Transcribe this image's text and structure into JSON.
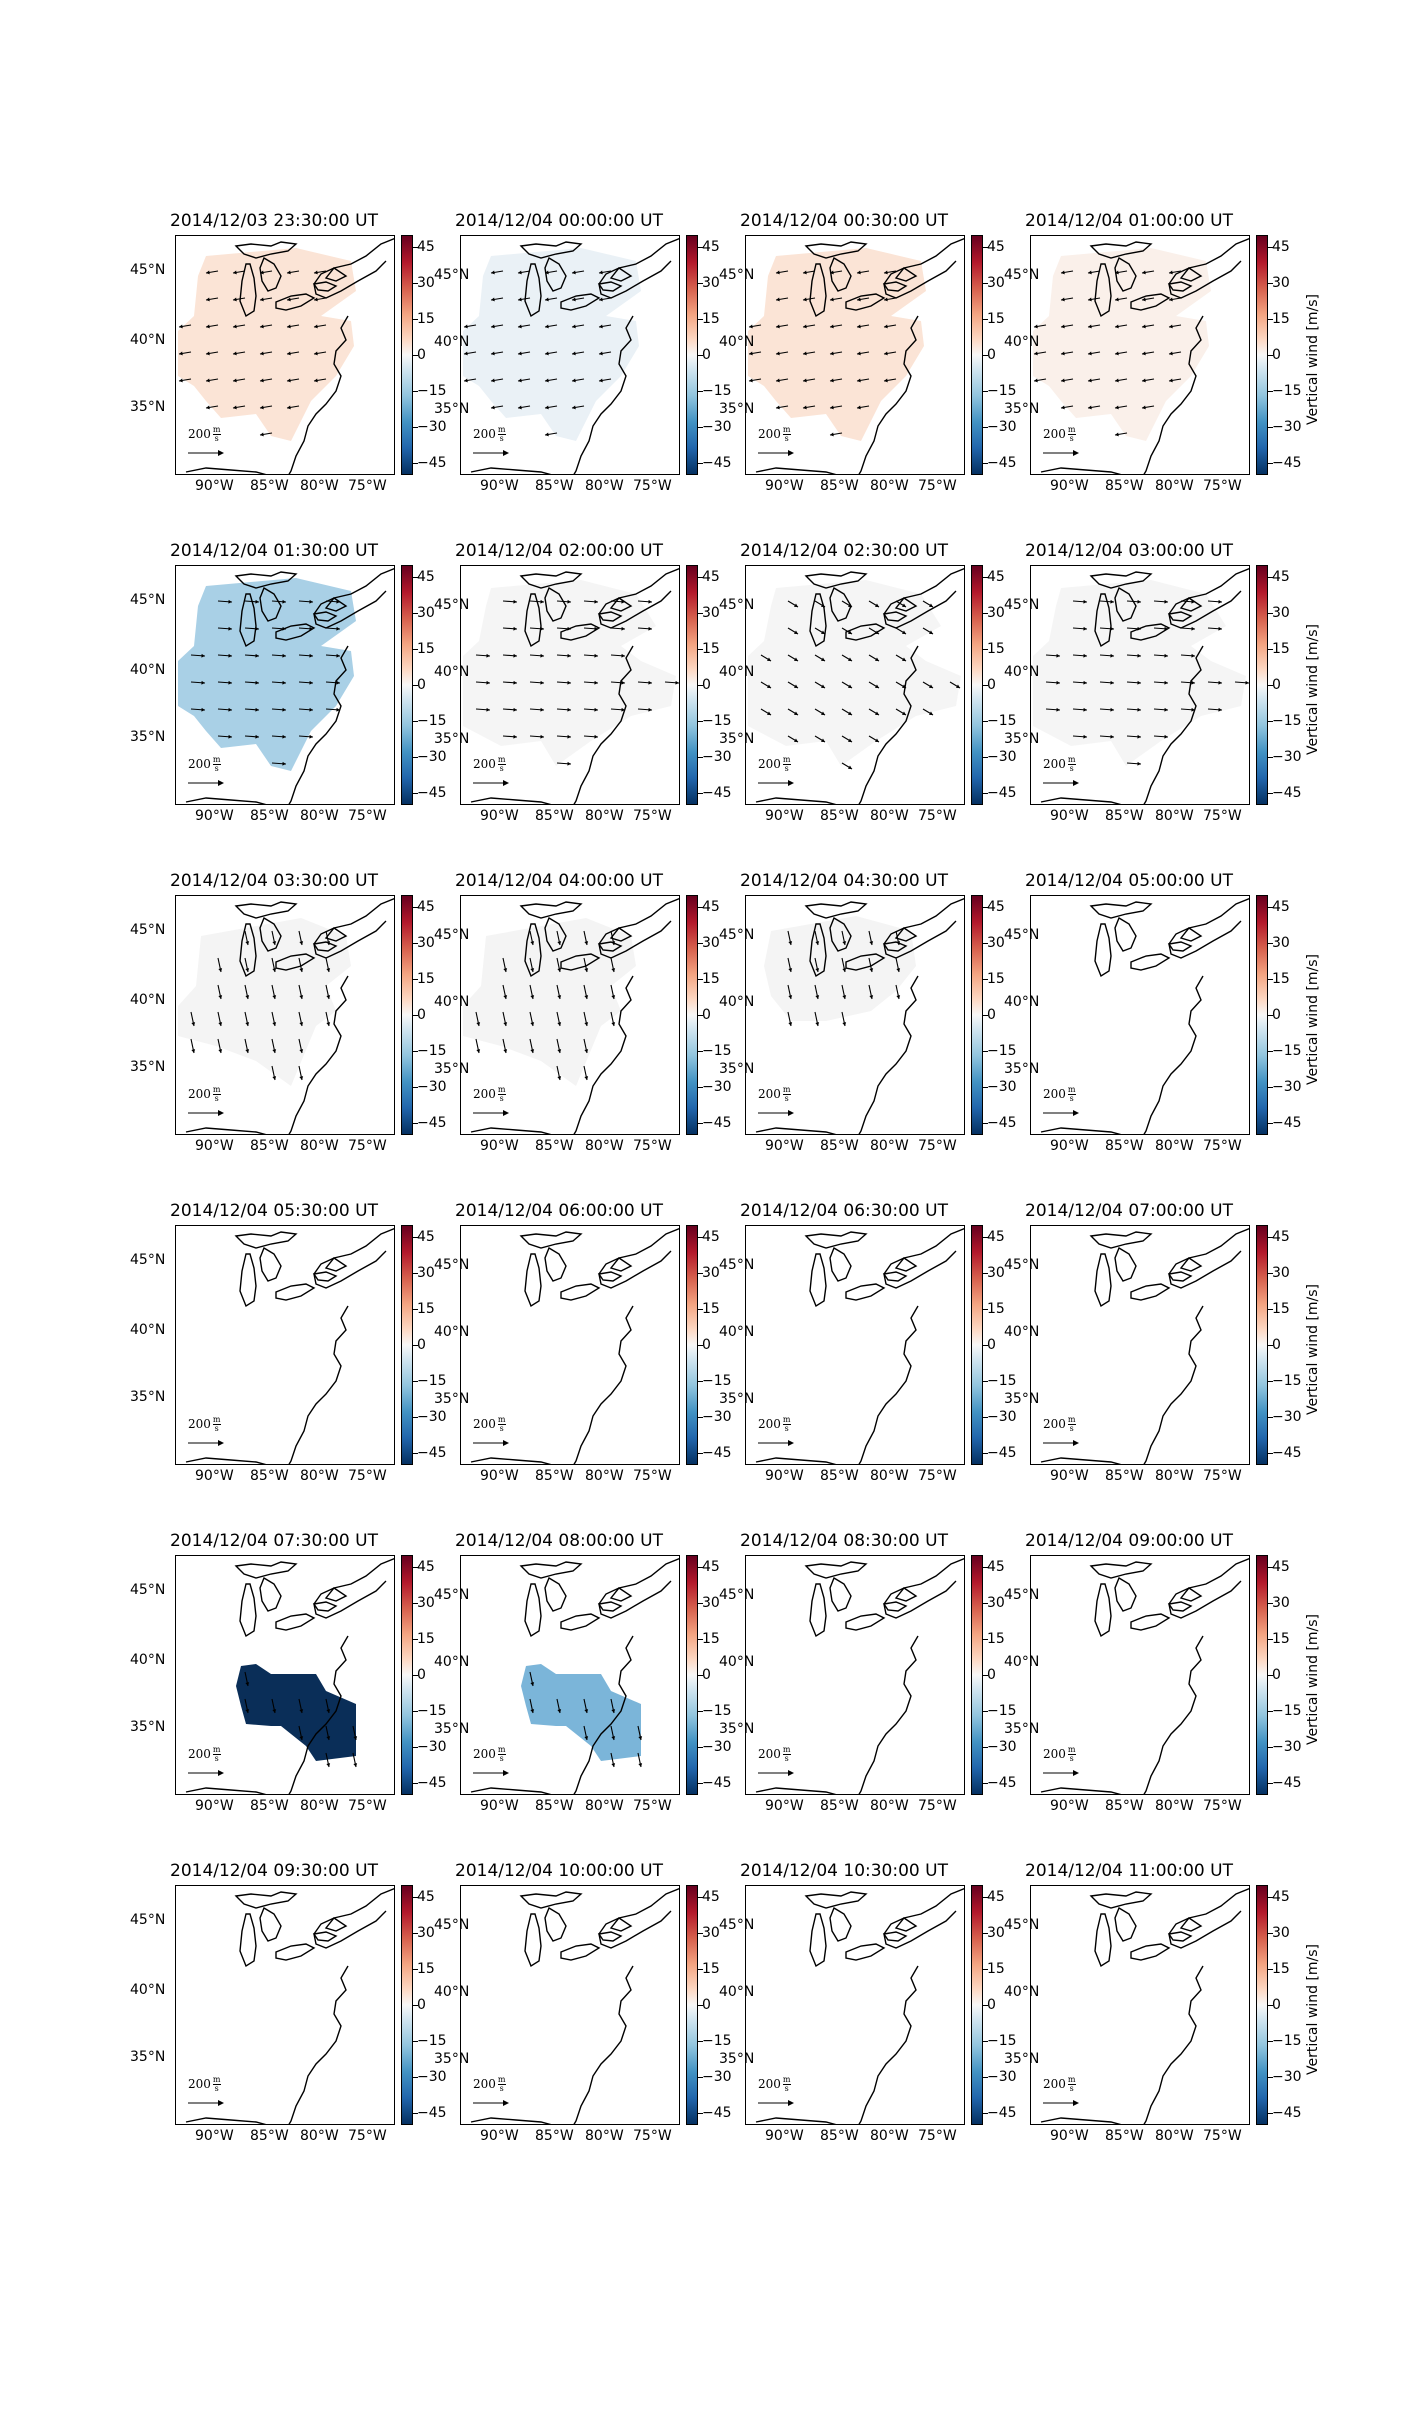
{
  "figure": {
    "colorbar_label": "Vertical wind [m/s]",
    "colorbar_ticks": [
      "45",
      "30",
      "15",
      "0",
      "−15",
      "−30",
      "−45"
    ],
    "lat_labels": [
      "45°N",
      "40°N",
      "35°N"
    ],
    "lon_labels": [
      "90°W",
      "85°W",
      "80°W",
      "75°W"
    ],
    "scale_label": "200",
    "scale_unit_num": "m",
    "scale_unit_den": "s"
  },
  "panels": [
    {
      "title": "2014/12/03 23:30:00 UT",
      "fill": "#fbe4d6",
      "region": "full",
      "arrows": "w"
    },
    {
      "title": "2014/12/04 00:00:00 UT",
      "fill": "#eaf1f6",
      "region": "full",
      "arrows": "w"
    },
    {
      "title": "2014/12/04 00:30:00 UT",
      "fill": "#fbe4d6",
      "region": "full",
      "arrows": "w"
    },
    {
      "title": "2014/12/04 01:00:00 UT",
      "fill": "#faf0ea",
      "region": "full",
      "arrows": "w"
    },
    {
      "title": "2014/12/04 01:30:00 UT",
      "fill": "#a9d0e6",
      "region": "full",
      "arrows": "e"
    },
    {
      "title": "2014/12/04 02:00:00 UT",
      "fill": "#f5f5f5",
      "region": "wide",
      "arrows": "e"
    },
    {
      "title": "2014/12/04 02:30:00 UT",
      "fill": "#f5f5f5",
      "region": "wide",
      "arrows": "se"
    },
    {
      "title": "2014/12/04 03:00:00 UT",
      "fill": "#f5f5f5",
      "region": "wide",
      "arrows": "e"
    },
    {
      "title": "2014/12/04 03:30:00 UT",
      "fill": "#f4f4f4",
      "region": "mid",
      "arrows": "s"
    },
    {
      "title": "2014/12/04 04:00:00 UT",
      "fill": "#f4f4f4",
      "region": "mid",
      "arrows": "s"
    },
    {
      "title": "2014/12/04 04:30:00 UT",
      "fill": "#f4f4f4",
      "region": "north",
      "arrows": "s"
    },
    {
      "title": "2014/12/04 05:00:00 UT",
      "fill": "",
      "region": "none",
      "arrows": ""
    },
    {
      "title": "2014/12/04 05:30:00 UT",
      "fill": "",
      "region": "none",
      "arrows": ""
    },
    {
      "title": "2014/12/04 06:00:00 UT",
      "fill": "",
      "region": "none",
      "arrows": ""
    },
    {
      "title": "2014/12/04 06:30:00 UT",
      "fill": "",
      "region": "none",
      "arrows": ""
    },
    {
      "title": "2014/12/04 07:00:00 UT",
      "fill": "",
      "region": "none",
      "arrows": ""
    },
    {
      "title": "2014/12/04 07:30:00 UT",
      "fill": "#0a2e58",
      "region": "band",
      "arrows": "s"
    },
    {
      "title": "2014/12/04 08:00:00 UT",
      "fill": "#7bb5d9",
      "region": "band",
      "arrows": "s"
    },
    {
      "title": "2014/12/04 08:30:00 UT",
      "fill": "",
      "region": "none",
      "arrows": ""
    },
    {
      "title": "2014/12/04 09:00:00 UT",
      "fill": "",
      "region": "none",
      "arrows": ""
    },
    {
      "title": "2014/12/04 09:30:00 UT",
      "fill": "",
      "region": "none",
      "arrows": ""
    },
    {
      "title": "2014/12/04 10:00:00 UT",
      "fill": "",
      "region": "none",
      "arrows": ""
    },
    {
      "title": "2014/12/04 10:30:00 UT",
      "fill": "",
      "region": "none",
      "arrows": ""
    },
    {
      "title": "2014/12/04 11:00:00 UT",
      "fill": "",
      "region": "none",
      "arrows": ""
    }
  ]
}
